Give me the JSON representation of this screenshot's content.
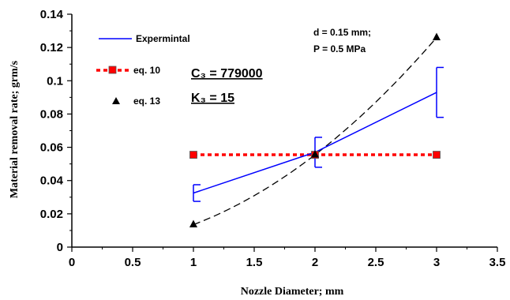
{
  "chart_data": {
    "type": "line",
    "xlabel": "Nozzle Diameter;   mm",
    "ylabel": "Material removal rate;  grm/s",
    "xlim": [
      0,
      3.5
    ],
    "ylim": [
      0,
      0.14
    ],
    "x_ticks": [
      "0",
      "0.5",
      "1",
      "1.5",
      "2",
      "2.5",
      "3",
      "3.5"
    ],
    "y_ticks": [
      "0",
      "0.02",
      "0.04",
      "0.06",
      "0.08",
      "0.1",
      "0.12",
      "0.14"
    ],
    "legend_position": "top-left",
    "series": [
      {
        "name": "Expermintal",
        "style": "solid-line",
        "color": "#0000FF",
        "x": [
          1,
          2,
          3
        ],
        "y": [
          0.0325,
          0.057,
          0.093
        ],
        "error_low": [
          0.0275,
          0.048,
          0.078
        ],
        "error_high": [
          0.0375,
          0.066,
          0.108
        ]
      },
      {
        "name": "eq. 10",
        "style": "dotted-square",
        "color": "#FF0000",
        "marker_color": "#FF0000",
        "x": [
          1,
          2,
          3
        ],
        "y": [
          0.0555,
          0.0555,
          0.0555
        ]
      },
      {
        "name": "eq. 13",
        "style": "dashed-triangle",
        "color": "#000000",
        "x": [
          1,
          2,
          3
        ],
        "y": [
          0.0135,
          0.0555,
          0.126
        ]
      }
    ],
    "annotations": {
      "params_line1": "d = 0.15 mm;",
      "params_line2": "P = 0.5 MPa",
      "c3": "C₃ = 779000",
      "k3": "K₃ = 15"
    }
  }
}
